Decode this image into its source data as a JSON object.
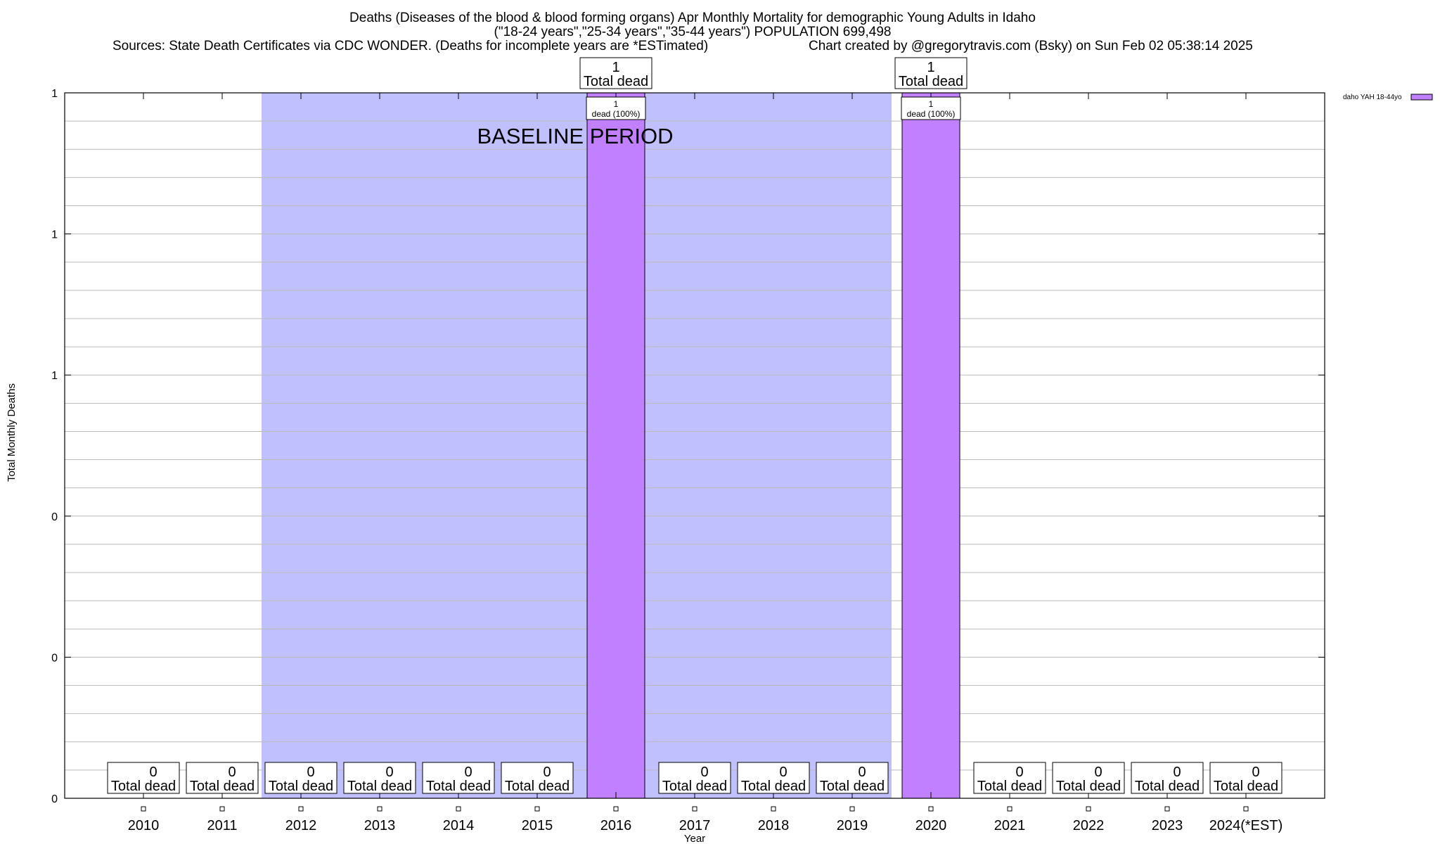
{
  "chart_data": {
    "type": "bar",
    "title_lines": [
      "Deaths (Diseases of the blood & blood forming organs) Apr Monthly Mortality for demographic Young Adults in Idaho",
      "(\"18-24 years\",\"25-34 years\",\"35-44 years\") POPULATION 699,498"
    ],
    "sources": "Sources: State Death Certificates via CDC WONDER. (Deaths for incomplete years are *ESTimated)",
    "credit": "Chart created by @gregorytravis.com (Bsky) on Sun Feb 02 05:38:14 2025",
    "xlabel": "Year",
    "ylabel": "Total Monthly Deaths",
    "categories": [
      "2010",
      "2011",
      "2012",
      "2013",
      "2014",
      "2015",
      "2016",
      "2017",
      "2018",
      "2019",
      "2020",
      "2021",
      "2022",
      "2023",
      "2024(*EST)"
    ],
    "series": [
      {
        "name": "daho YAH 18-44yo",
        "color": "#c080ff",
        "values": [
          0,
          0,
          0,
          0,
          0,
          0,
          1,
          0,
          0,
          0,
          1,
          0,
          0,
          0,
          0
        ]
      }
    ],
    "ylim": [
      0,
      1
    ],
    "y_tick_labels": [
      "0",
      "0",
      "0",
      "1",
      "1",
      "1"
    ],
    "total_suffix": "Total dead",
    "bar_label_suffix": "dead (100%)",
    "bar_labels": [
      "",
      "",
      "",
      "",
      "",
      "",
      "1",
      "",
      "",
      "",
      "1",
      "",
      "",
      "",
      ""
    ],
    "baseline": {
      "label": "BASELINE PERIOD",
      "from": "2012",
      "to": "2019",
      "color": "#c0c0ff"
    },
    "grid": true,
    "legend_position": "top-right"
  }
}
